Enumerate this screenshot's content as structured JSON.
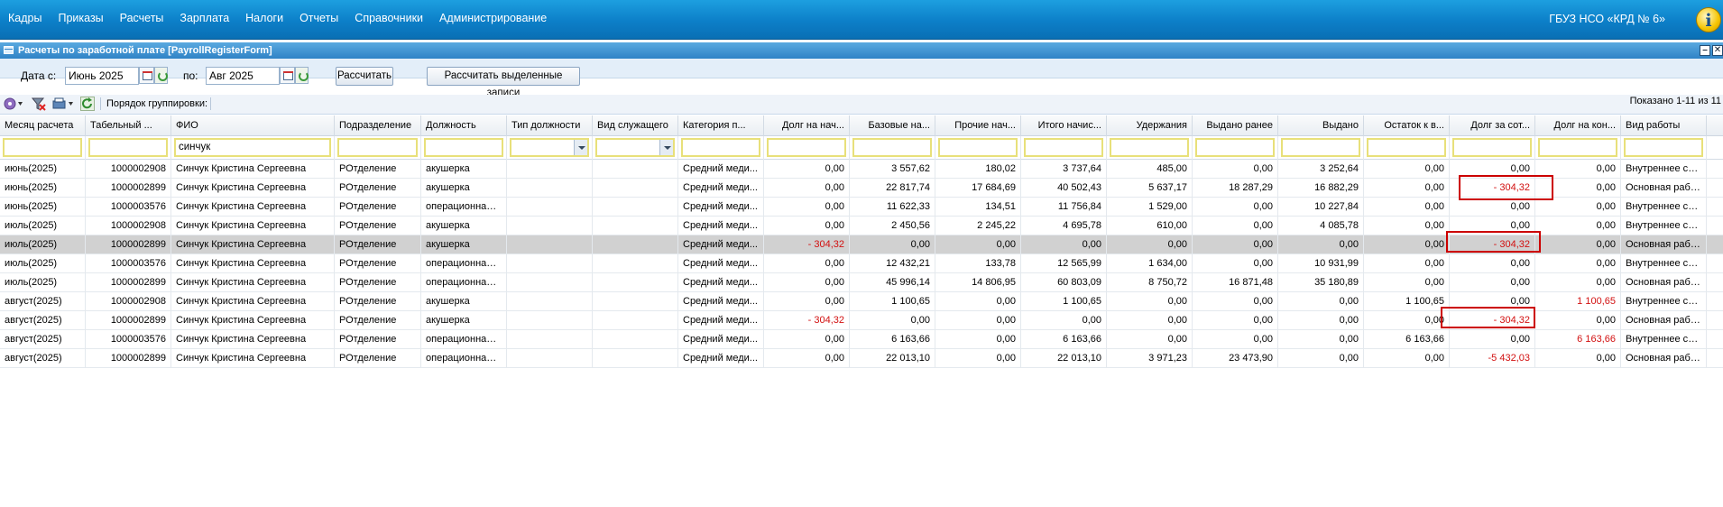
{
  "menu": [
    "Кадры",
    "Приказы",
    "Расчеты",
    "Зарплата",
    "Налоги",
    "Отчеты",
    "Справочники",
    "Администрирование"
  ],
  "org": "ГБУЗ НСО «КРД № 6»",
  "window": {
    "title": "Расчеты по заработной плате [PayrollRegisterForm]",
    "minimize": "–",
    "close": "✕"
  },
  "params": {
    "date_from_label": "Дата с:",
    "date_from": "Июнь 2025",
    "date_to_label": "по:",
    "date_to": "Авг 2025",
    "calc_button": "Рассчитать",
    "calc_selected_button": "Рассчитать выделенные записи"
  },
  "toolbar": {
    "grouping_label": "Порядок группировки:"
  },
  "shown_label": "Показано 1-11 из 11",
  "columns": [
    "Месяц расчета",
    "Табельный ...",
    "ФИО",
    "Подразделение",
    "Должность",
    "Тип должности",
    "Вид служащего",
    "Категория п...",
    "Долг на нач...",
    "Базовые на...",
    "Прочие нач...",
    "Итого начис...",
    "Удержания",
    "Выдано ранее",
    "Выдано",
    "Остаток к в...",
    "Долг за сот...",
    "Долг на кон...",
    "Вид работы"
  ],
  "filter": {
    "fio": "синчук"
  },
  "rows": [
    [
      "июнь(2025)",
      "1000002908",
      "Синчук Кристина Сергеевна",
      "РОтделение",
      "акушерка",
      "",
      "",
      "Средний меди...",
      "0,00",
      "3 557,62",
      "180,02",
      "3 737,64",
      "485,00",
      "0,00",
      "3 252,64",
      "0,00",
      "0,00",
      "0,00",
      "Внутреннее со..."
    ],
    [
      "июнь(2025)",
      "1000002899",
      "Синчук Кристина Сергеевна",
      "РОтделение",
      "акушерка",
      "",
      "",
      "Средний меди...",
      "0,00",
      "22 817,74",
      "17 684,69",
      "40 502,43",
      "5 637,17",
      "18 287,29",
      "16 882,29",
      "0,00",
      "- 304,32",
      "0,00",
      "Основная рабо..."
    ],
    [
      "июнь(2025)",
      "1000003576",
      "Синчук Кристина Сергеевна",
      "РОтделение",
      "операционная ...",
      "",
      "",
      "Средний меди...",
      "0,00",
      "11 622,33",
      "134,51",
      "11 756,84",
      "1 529,00",
      "0,00",
      "10 227,84",
      "0,00",
      "0,00",
      "0,00",
      "Внутреннее со..."
    ],
    [
      "июль(2025)",
      "1000002908",
      "Синчук Кристина Сергеевна",
      "РОтделение",
      "акушерка",
      "",
      "",
      "Средний меди...",
      "0,00",
      "2 450,56",
      "2 245,22",
      "4 695,78",
      "610,00",
      "0,00",
      "4 085,78",
      "0,00",
      "0,00",
      "0,00",
      "Внутреннее со..."
    ],
    [
      "июль(2025)",
      "1000002899",
      "Синчук Кристина Сергеевна",
      "РОтделение",
      "акушерка",
      "",
      "",
      "Средний меди...",
      "- 304,32",
      "0,00",
      "0,00",
      "0,00",
      "0,00",
      "0,00",
      "0,00",
      "0,00",
      "- 304,32",
      "0,00",
      "Основная рабо..."
    ],
    [
      "июль(2025)",
      "1000003576",
      "Синчук Кристина Сергеевна",
      "РОтделение",
      "операционная ...",
      "",
      "",
      "Средний меди...",
      "0,00",
      "12 432,21",
      "133,78",
      "12 565,99",
      "1 634,00",
      "0,00",
      "10 931,99",
      "0,00",
      "0,00",
      "0,00",
      "Внутреннее со..."
    ],
    [
      "июль(2025)",
      "1000002899",
      "Синчук Кристина Сергеевна",
      "РОтделение",
      "операционная ...",
      "",
      "",
      "Средний меди...",
      "0,00",
      "45 996,14",
      "14 806,95",
      "60 803,09",
      "8 750,72",
      "16 871,48",
      "35 180,89",
      "0,00",
      "0,00",
      "0,00",
      "Основная рабо..."
    ],
    [
      "август(2025)",
      "1000002908",
      "Синчук Кристина Сергеевна",
      "РОтделение",
      "акушерка",
      "",
      "",
      "Средний меди...",
      "0,00",
      "1 100,65",
      "0,00",
      "1 100,65",
      "0,00",
      "0,00",
      "0,00",
      "1 100,65",
      "0,00",
      "1 100,65",
      "Внутреннее со..."
    ],
    [
      "август(2025)",
      "1000002899",
      "Синчук Кристина Сергеевна",
      "РОтделение",
      "акушерка",
      "",
      "",
      "Средний меди...",
      "- 304,32",
      "0,00",
      "0,00",
      "0,00",
      "0,00",
      "0,00",
      "0,00",
      "0,00",
      "- 304,32",
      "0,00",
      "Основная рабо..."
    ],
    [
      "август(2025)",
      "1000003576",
      "Синчук Кристина Сергеевна",
      "РОтделение",
      "операционная ...",
      "",
      "",
      "Средний меди...",
      "0,00",
      "6 163,66",
      "0,00",
      "6 163,66",
      "0,00",
      "0,00",
      "0,00",
      "6 163,66",
      "0,00",
      "6 163,66",
      "Внутреннее со..."
    ],
    [
      "август(2025)",
      "1000002899",
      "Синчук Кристина Сергеевна",
      "РОтделение",
      "операционная ...",
      "",
      "",
      "Средний меди...",
      "0,00",
      "22 013,10",
      "0,00",
      "22 013,10",
      "3 971,23",
      "23 473,90",
      "0,00",
      "0,00",
      "-5 432,03",
      "0,00",
      "Основная рабо..."
    ]
  ],
  "selected_row": 4,
  "red_cells": [
    [
      4,
      8
    ],
    [
      8,
      8
    ],
    [
      1,
      16
    ],
    [
      4,
      16
    ],
    [
      8,
      16
    ],
    [
      10,
      16
    ],
    [
      7,
      17
    ],
    [
      9,
      17
    ]
  ],
  "highlight_boxes": [
    [
      1,
      16
    ],
    [
      4,
      16
    ],
    [
      8,
      16
    ]
  ],
  "colors": {
    "topbar": "#0c7fc8",
    "negative": "#d21010",
    "highlight": "#cc0000",
    "selected_row": "#d1d1d1",
    "filter_border": "#e8e07a"
  }
}
